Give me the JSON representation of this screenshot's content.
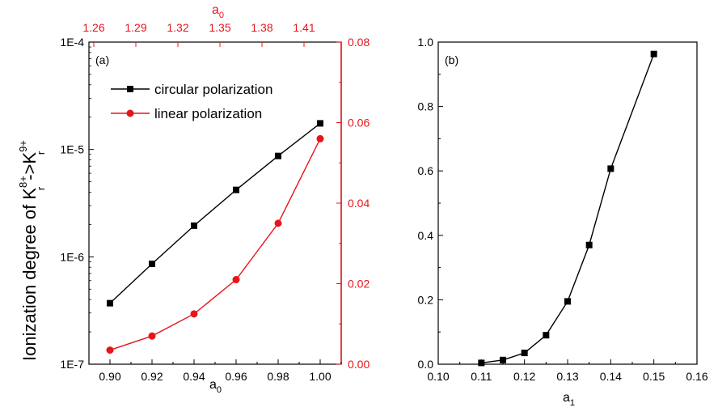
{
  "colors": {
    "black": "#000000",
    "red": "#e8141b"
  },
  "chart_data": [
    {
      "panel_label": "(a)",
      "type": "line",
      "xlabel": "a",
      "xlabel_sub": "0",
      "ylabel_main": "Ionization degree of K",
      "ylabel_sup1": "8+",
      "ylabel_sub1": "r",
      "ylabel_arrow": "->K",
      "ylabel_sup2": "9+",
      "ylabel_sub2": "r",
      "xlim": [
        0.89,
        1.01
      ],
      "xticks": [
        "0.90",
        "0.92",
        "0.94",
        "0.96",
        "0.98",
        "1.00"
      ],
      "left_yscale": "log",
      "left_ylim": [
        1e-07,
        0.0001
      ],
      "left_yticks": [
        "1E-7",
        "1E-6",
        "1E-5",
        "1E-4"
      ],
      "right_ylim": [
        0,
        0.08
      ],
      "right_yticks": [
        "0.00",
        "0.02",
        "0.04",
        "0.06",
        "0.08"
      ],
      "top_xlabel": "a",
      "top_xlabel_sub": "0",
      "top_xticks": [
        "1.26",
        "1.29",
        "1.32",
        "1.35",
        "1.38",
        "1.41"
      ],
      "legend_position": "top-left",
      "series": [
        {
          "name": "circular polarization",
          "axis": "left",
          "color": "#000000",
          "marker": "square",
          "x": [
            0.9,
            0.92,
            0.94,
            0.96,
            0.98,
            1.0
          ],
          "y": [
            3.7e-07,
            8.6e-07,
            1.95e-06,
            4.2e-06,
            8.7e-06,
            1.75e-05
          ]
        },
        {
          "name": "linear polarization",
          "axis": "right",
          "color": "#e8141b",
          "marker": "circle",
          "x": [
            0.9,
            0.92,
            0.94,
            0.96,
            0.98,
            1.0
          ],
          "y": [
            0.0035,
            0.007,
            0.0125,
            0.021,
            0.035,
            0.056
          ]
        }
      ]
    },
    {
      "panel_label": "(b)",
      "type": "line",
      "xlabel": "a",
      "xlabel_sub": "1",
      "ylabel": "",
      "xlim": [
        0.1,
        0.16
      ],
      "xticks": [
        "0.10",
        "0.11",
        "0.12",
        "0.13",
        "0.14",
        "0.15",
        "0.16"
      ],
      "ylim": [
        0,
        1.0
      ],
      "yticks": [
        "0.0",
        "0.2",
        "0.4",
        "0.6",
        "0.8",
        "1.0"
      ],
      "series": [
        {
          "color": "#000000",
          "marker": "square",
          "x": [
            0.11,
            0.115,
            0.12,
            0.125,
            0.13,
            0.135,
            0.14,
            0.15
          ],
          "y": [
            0.004,
            0.013,
            0.035,
            0.09,
            0.195,
            0.37,
            0.607,
            0.963
          ]
        }
      ]
    }
  ]
}
